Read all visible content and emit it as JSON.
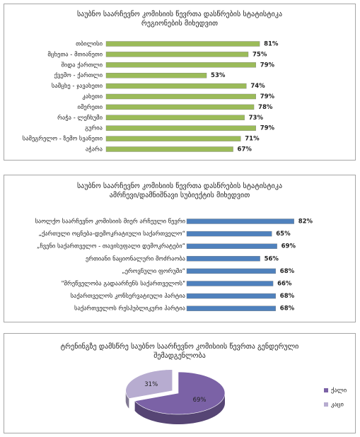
{
  "chart_data": [
    {
      "type": "bar",
      "title": "საუბნო საარჩევნო კომისიის წევრთა დასწრების სტატისტიკა რეგიონების მიხედვით",
      "categories": [
        "თბილისი",
        "მცხეთა - მთიანეთი",
        "შიდა ქართლი",
        "ქვემო - ქართლი",
        "სამცხე - ჯავახეთი",
        "კახეთი",
        "იმერეთი",
        "რაჭა - ლეჩხუმი",
        "გურია",
        "სამეგრელო - ზემო სვანეთი",
        "აჭარა"
      ],
      "values": [
        81,
        75,
        79,
        53,
        74,
        79,
        78,
        73,
        79,
        71,
        67
      ],
      "value_labels": [
        "81%",
        "75%",
        "79%",
        "53%",
        "74%",
        "79%",
        "78%",
        "73%",
        "79%",
        "71%",
        "67%"
      ],
      "color": "#9bbb59"
    },
    {
      "type": "bar",
      "title": "საუბნო საარჩევნო კომისიის წევრთა დასწრების სტატისტიკა ამრჩევი/დამნიშნავი სუბიექტის მიხედვით",
      "categories": [
        "საოლქო საარჩევნო კომისიის მიერ არჩეული წევრი",
        "„ქართული ოცნება-დემოკრატიული საქართველო“",
        "„ჩვენი საქართველო - თავისუფალი დემოკრატები“",
        "ერთიანი ნაციონალური მოძრაობა",
        "„ეროვნული ფორუმი“",
        "\"მრეწველობა გადაარჩენს საქართველოს\"",
        "საქართველოს კონსერვატიული პარტია",
        "საქართველოს რესპუბლიკური პარტია"
      ],
      "values": [
        82,
        65,
        69,
        56,
        68,
        66,
        68,
        68
      ],
      "value_labels": [
        "82%",
        "65%",
        "69%",
        "56%",
        "68%",
        "66%",
        "68%",
        "68%"
      ],
      "color": "#4f81bd"
    },
    {
      "type": "pie",
      "title": "ტრენინგზე დამსწრე საუბნო საარჩევნო კომისიის წევრთა გენდერული შემადგენლობა",
      "categories": [
        "ქალი",
        "კაცი"
      ],
      "values": [
        69,
        31
      ],
      "value_labels": [
        "69%",
        "31%"
      ],
      "colors": [
        "#7b62a6",
        "#b7acd0"
      ],
      "legend": "right"
    }
  ]
}
